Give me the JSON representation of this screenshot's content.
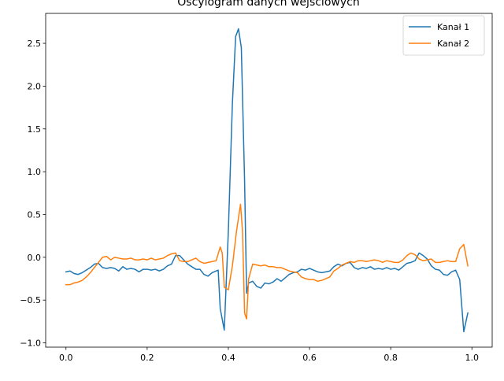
{
  "chart_data": {
    "type": "line",
    "title": "Oscylogram danych wejściowych",
    "xlabel": "",
    "ylabel": "",
    "xlim": [
      -0.05,
      1.05
    ],
    "ylim": [
      -1.05,
      2.85
    ],
    "xticks": [
      0.0,
      0.2,
      0.4,
      0.6,
      0.8,
      1.0
    ],
    "xtick_labels": [
      "0.0",
      "0.2",
      "0.4",
      "0.6",
      "0.8",
      "1.0"
    ],
    "yticks": [
      -1.0,
      -0.5,
      0.0,
      0.5,
      1.0,
      1.5,
      2.0,
      2.5
    ],
    "ytick_labels": [
      "−1.0",
      "−0.5",
      "0.0",
      "0.5",
      "1.0",
      "1.5",
      "2.0",
      "2.5"
    ],
    "grid": false,
    "legend_position": "top-right",
    "series": [
      {
        "name": "Kanał 1",
        "color": "#1f77b4",
        "points": [
          [
            0.0,
            -0.17
          ],
          [
            0.01,
            -0.16
          ],
          [
            0.02,
            -0.19
          ],
          [
            0.03,
            -0.2
          ],
          [
            0.04,
            -0.18
          ],
          [
            0.05,
            -0.15
          ],
          [
            0.06,
            -0.12
          ],
          [
            0.07,
            -0.08
          ],
          [
            0.08,
            -0.07
          ],
          [
            0.09,
            -0.12
          ],
          [
            0.1,
            -0.13
          ],
          [
            0.11,
            -0.12
          ],
          [
            0.12,
            -0.13
          ],
          [
            0.13,
            -0.16
          ],
          [
            0.14,
            -0.11
          ],
          [
            0.15,
            -0.14
          ],
          [
            0.16,
            -0.13
          ],
          [
            0.17,
            -0.14
          ],
          [
            0.18,
            -0.17
          ],
          [
            0.19,
            -0.14
          ],
          [
            0.2,
            -0.14
          ],
          [
            0.21,
            -0.15
          ],
          [
            0.22,
            -0.14
          ],
          [
            0.23,
            -0.16
          ],
          [
            0.24,
            -0.14
          ],
          [
            0.25,
            -0.1
          ],
          [
            0.26,
            -0.08
          ],
          [
            0.27,
            0.02
          ],
          [
            0.28,
            0.02
          ],
          [
            0.29,
            -0.03
          ],
          [
            0.3,
            -0.08
          ],
          [
            0.31,
            -0.11
          ],
          [
            0.32,
            -0.14
          ],
          [
            0.33,
            -0.14
          ],
          [
            0.34,
            -0.2
          ],
          [
            0.35,
            -0.22
          ],
          [
            0.36,
            -0.18
          ],
          [
            0.37,
            -0.16
          ],
          [
            0.375,
            -0.15
          ],
          [
            0.38,
            -0.6
          ],
          [
            0.39,
            -0.85
          ],
          [
            0.4,
            0.3
          ],
          [
            0.41,
            1.8
          ],
          [
            0.418,
            2.58
          ],
          [
            0.425,
            2.67
          ],
          [
            0.432,
            2.45
          ],
          [
            0.44,
            0.9
          ],
          [
            0.445,
            -0.42
          ],
          [
            0.45,
            -0.3
          ],
          [
            0.46,
            -0.28
          ],
          [
            0.47,
            -0.34
          ],
          [
            0.48,
            -0.36
          ],
          [
            0.49,
            -0.3
          ],
          [
            0.5,
            -0.31
          ],
          [
            0.51,
            -0.29
          ],
          [
            0.52,
            -0.25
          ],
          [
            0.53,
            -0.28
          ],
          [
            0.54,
            -0.24
          ],
          [
            0.55,
            -0.2
          ],
          [
            0.56,
            -0.18
          ],
          [
            0.57,
            -0.17
          ],
          [
            0.58,
            -0.14
          ],
          [
            0.59,
            -0.15
          ],
          [
            0.6,
            -0.13
          ],
          [
            0.61,
            -0.15
          ],
          [
            0.62,
            -0.17
          ],
          [
            0.63,
            -0.18
          ],
          [
            0.64,
            -0.17
          ],
          [
            0.65,
            -0.16
          ],
          [
            0.66,
            -0.11
          ],
          [
            0.67,
            -0.08
          ],
          [
            0.68,
            -0.1
          ],
          [
            0.69,
            -0.07
          ],
          [
            0.7,
            -0.06
          ],
          [
            0.71,
            -0.12
          ],
          [
            0.72,
            -0.14
          ],
          [
            0.73,
            -0.12
          ],
          [
            0.74,
            -0.13
          ],
          [
            0.75,
            -0.11
          ],
          [
            0.76,
            -0.14
          ],
          [
            0.77,
            -0.13
          ],
          [
            0.78,
            -0.14
          ],
          [
            0.79,
            -0.12
          ],
          [
            0.8,
            -0.14
          ],
          [
            0.81,
            -0.13
          ],
          [
            0.82,
            -0.15
          ],
          [
            0.83,
            -0.11
          ],
          [
            0.84,
            -0.07
          ],
          [
            0.85,
            -0.06
          ],
          [
            0.86,
            -0.04
          ],
          [
            0.87,
            0.05
          ],
          [
            0.88,
            0.02
          ],
          [
            0.89,
            -0.02
          ],
          [
            0.9,
            -0.1
          ],
          [
            0.91,
            -0.14
          ],
          [
            0.92,
            -0.15
          ],
          [
            0.93,
            -0.2
          ],
          [
            0.94,
            -0.21
          ],
          [
            0.95,
            -0.17
          ],
          [
            0.96,
            -0.15
          ],
          [
            0.97,
            -0.26
          ],
          [
            0.98,
            -0.87
          ],
          [
            0.99,
            -0.65
          ]
        ]
      },
      {
        "name": "Kanał 2",
        "color": "#ff7f0e",
        "points": [
          [
            0.0,
            -0.32
          ],
          [
            0.01,
            -0.32
          ],
          [
            0.02,
            -0.3
          ],
          [
            0.03,
            -0.29
          ],
          [
            0.04,
            -0.27
          ],
          [
            0.05,
            -0.23
          ],
          [
            0.06,
            -0.18
          ],
          [
            0.07,
            -0.12
          ],
          [
            0.08,
            -0.06
          ],
          [
            0.09,
            0.0
          ],
          [
            0.1,
            0.01
          ],
          [
            0.11,
            -0.03
          ],
          [
            0.12,
            0.0
          ],
          [
            0.13,
            -0.01
          ],
          [
            0.14,
            -0.02
          ],
          [
            0.15,
            -0.02
          ],
          [
            0.16,
            -0.01
          ],
          [
            0.17,
            -0.03
          ],
          [
            0.18,
            -0.03
          ],
          [
            0.19,
            -0.02
          ],
          [
            0.2,
            -0.03
          ],
          [
            0.21,
            -0.01
          ],
          [
            0.22,
            -0.03
          ],
          [
            0.23,
            -0.02
          ],
          [
            0.24,
            -0.01
          ],
          [
            0.25,
            0.02
          ],
          [
            0.26,
            0.04
          ],
          [
            0.27,
            0.05
          ],
          [
            0.28,
            -0.04
          ],
          [
            0.29,
            -0.05
          ],
          [
            0.3,
            -0.05
          ],
          [
            0.31,
            -0.03
          ],
          [
            0.32,
            -0.01
          ],
          [
            0.33,
            -0.05
          ],
          [
            0.34,
            -0.07
          ],
          [
            0.35,
            -0.06
          ],
          [
            0.36,
            -0.05
          ],
          [
            0.37,
            -0.04
          ],
          [
            0.38,
            0.12
          ],
          [
            0.385,
            0.05
          ],
          [
            0.39,
            -0.35
          ],
          [
            0.4,
            -0.38
          ],
          [
            0.41,
            -0.1
          ],
          [
            0.42,
            0.3
          ],
          [
            0.43,
            0.62
          ],
          [
            0.435,
            0.3
          ],
          [
            0.44,
            -0.65
          ],
          [
            0.445,
            -0.72
          ],
          [
            0.45,
            -0.25
          ],
          [
            0.46,
            -0.08
          ],
          [
            0.47,
            -0.09
          ],
          [
            0.48,
            -0.1
          ],
          [
            0.49,
            -0.09
          ],
          [
            0.5,
            -0.11
          ],
          [
            0.51,
            -0.11
          ],
          [
            0.52,
            -0.12
          ],
          [
            0.53,
            -0.12
          ],
          [
            0.54,
            -0.14
          ],
          [
            0.55,
            -0.16
          ],
          [
            0.56,
            -0.17
          ],
          [
            0.57,
            -0.18
          ],
          [
            0.58,
            -0.23
          ],
          [
            0.59,
            -0.25
          ],
          [
            0.6,
            -0.26
          ],
          [
            0.61,
            -0.26
          ],
          [
            0.62,
            -0.28
          ],
          [
            0.63,
            -0.27
          ],
          [
            0.64,
            -0.25
          ],
          [
            0.65,
            -0.23
          ],
          [
            0.66,
            -0.16
          ],
          [
            0.67,
            -0.13
          ],
          [
            0.68,
            -0.09
          ],
          [
            0.69,
            -0.07
          ],
          [
            0.7,
            -0.05
          ],
          [
            0.71,
            -0.06
          ],
          [
            0.72,
            -0.04
          ],
          [
            0.73,
            -0.04
          ],
          [
            0.74,
            -0.05
          ],
          [
            0.75,
            -0.04
          ],
          [
            0.76,
            -0.03
          ],
          [
            0.77,
            -0.04
          ],
          [
            0.78,
            -0.06
          ],
          [
            0.79,
            -0.04
          ],
          [
            0.8,
            -0.05
          ],
          [
            0.81,
            -0.06
          ],
          [
            0.82,
            -0.06
          ],
          [
            0.83,
            -0.03
          ],
          [
            0.84,
            0.02
          ],
          [
            0.85,
            0.05
          ],
          [
            0.86,
            0.03
          ],
          [
            0.87,
            -0.02
          ],
          [
            0.88,
            -0.04
          ],
          [
            0.89,
            -0.03
          ],
          [
            0.9,
            -0.02
          ],
          [
            0.91,
            -0.06
          ],
          [
            0.92,
            -0.06
          ],
          [
            0.93,
            -0.05
          ],
          [
            0.94,
            -0.04
          ],
          [
            0.95,
            -0.05
          ],
          [
            0.96,
            -0.05
          ],
          [
            0.97,
            0.1
          ],
          [
            0.98,
            0.15
          ],
          [
            0.99,
            -0.1
          ]
        ]
      }
    ]
  }
}
